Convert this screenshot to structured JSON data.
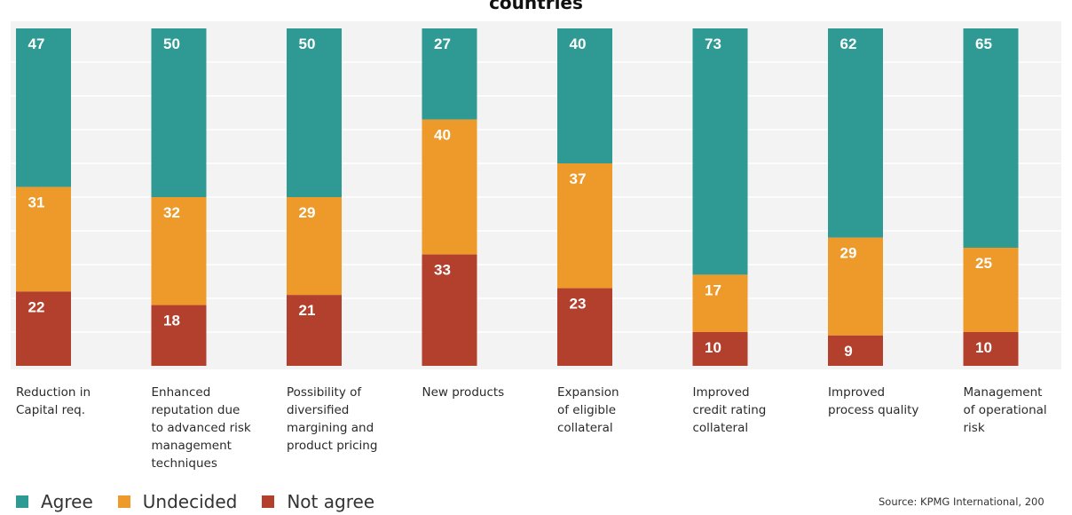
{
  "chart_data": {
    "type": "bar",
    "stacked": true,
    "title_fragment": "countries",
    "categories": [
      "Reduction in Capital req.",
      "Enhanced reputation due to advanced risk management techniques",
      "Possibility of diversified margining and product pricing",
      "New products",
      "Expansion of eligible collateral",
      "Improved credit rating collateral",
      "Improved process quality",
      "Management of operational risk"
    ],
    "category_label_lines": [
      [
        "Reduction in",
        "Capital req."
      ],
      [
        "Enhanced",
        "reputation due",
        "to advanced risk",
        "management",
        "techniques"
      ],
      [
        "Possibility of",
        "diversified",
        "margining and",
        "product pricing"
      ],
      [
        "New products"
      ],
      [
        "Expansion",
        "of eligible",
        "collateral"
      ],
      [
        "Improved",
        "credit rating",
        "collateral"
      ],
      [
        "Improved",
        "process quality"
      ],
      [
        "Management",
        "of operational",
        "risk"
      ]
    ],
    "series": [
      {
        "name": "Agree",
        "color": "#2e9a93",
        "values": [
          47,
          50,
          50,
          27,
          40,
          73,
          62,
          65
        ]
      },
      {
        "name": "Undecided",
        "color": "#ed9a2a",
        "values": [
          31,
          32,
          29,
          40,
          37,
          17,
          29,
          25
        ]
      },
      {
        "name": "Not agree",
        "color": "#b2402c",
        "values": [
          22,
          18,
          21,
          33,
          23,
          10,
          9,
          10
        ]
      }
    ],
    "ylim": [
      0,
      100
    ],
    "grid": true,
    "legend_position": "bottom-left",
    "source": "Source: KPMG International, 200"
  }
}
